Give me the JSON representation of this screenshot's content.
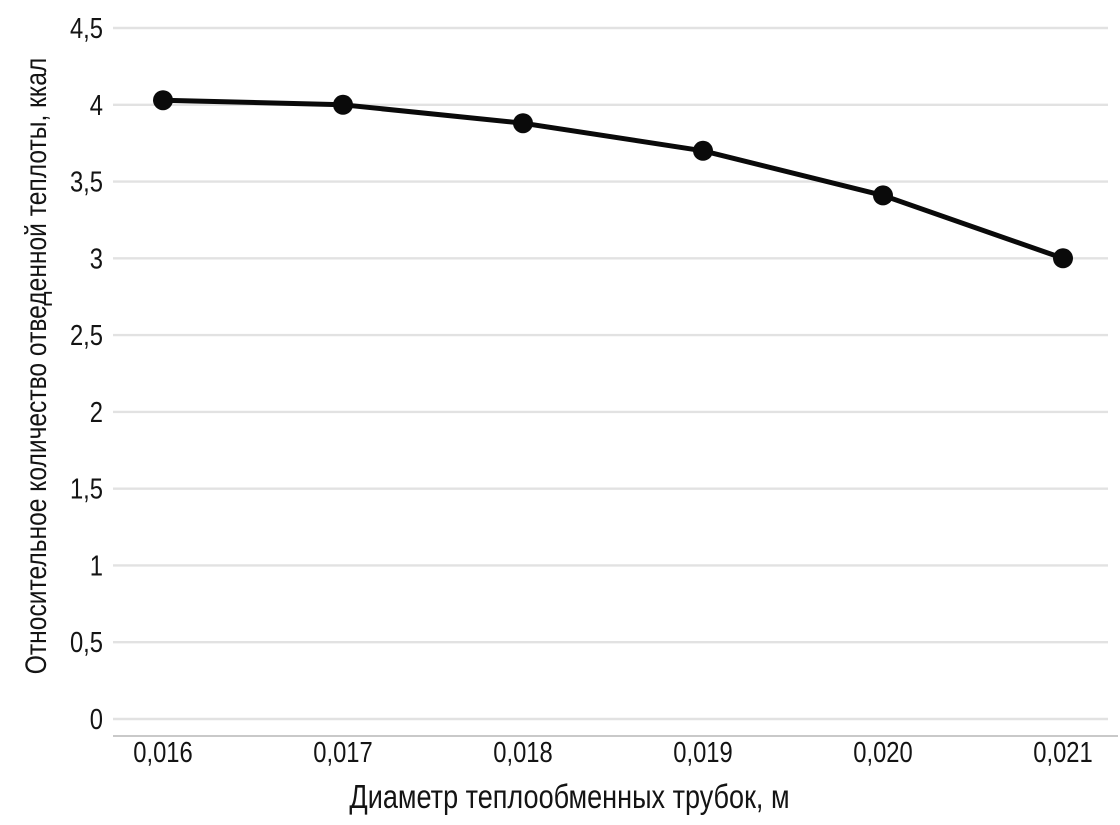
{
  "chart_data": {
    "type": "line",
    "title": "",
    "xlabel": "Диаметр теплообменных трубок, м",
    "ylabel": "Относительное количество отведенной теплоты, ккал",
    "categories": [
      "0,016",
      "0,017",
      "0,018",
      "0,019",
      "0,020",
      "0,021"
    ],
    "x_numeric": [
      0.016,
      0.017,
      0.018,
      0.019,
      0.02,
      0.021
    ],
    "values": [
      4.03,
      4.0,
      3.88,
      3.7,
      3.41,
      3.0
    ],
    "ylim": [
      0,
      4.5
    ],
    "ytick_labels": [
      "0",
      "0,5",
      "1",
      "1,5",
      "2",
      "2,5",
      "3",
      "3,5",
      "4",
      "4,5"
    ],
    "ytick_values": [
      0,
      0.5,
      1,
      1.5,
      2,
      2.5,
      3,
      3.5,
      4,
      4.5
    ],
    "grid": true,
    "legend": false,
    "marker_style": "filled-circle",
    "colors": {
      "line": "#0a0a0a",
      "marker": "#0a0a0a",
      "gridline": "#e2e2e2",
      "axis_line": "#c9c9c9",
      "text": "#141414",
      "background": "#ffffff"
    }
  }
}
